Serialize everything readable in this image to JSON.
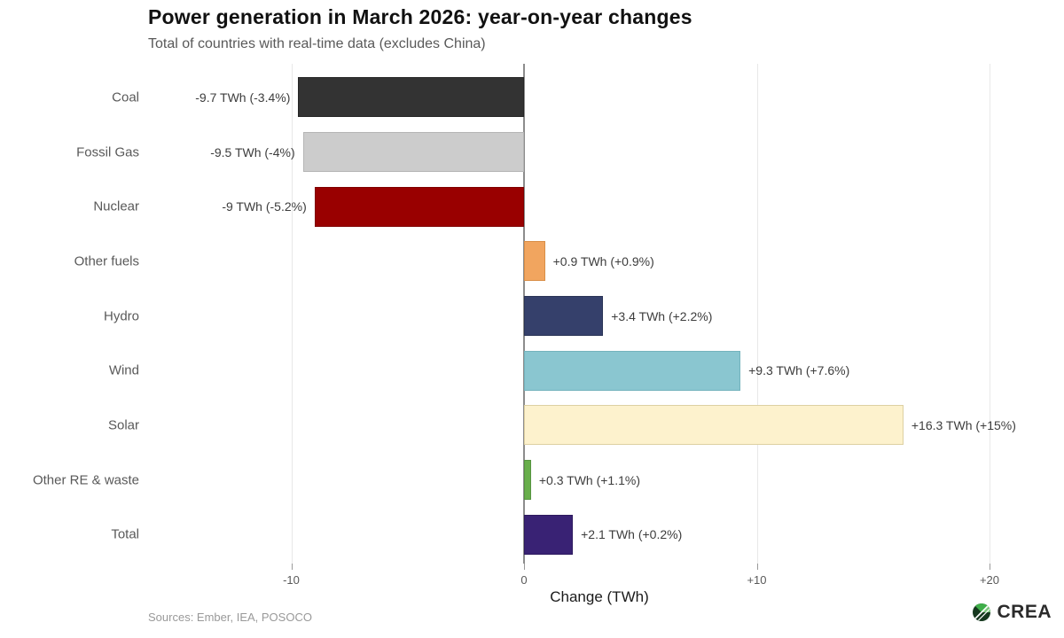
{
  "header": {
    "title": "Power generation in March 2026: year-on-year changes",
    "subtitle": "Total of countries with real-time data (excludes China)"
  },
  "chart_data": {
    "type": "bar",
    "orientation": "horizontal",
    "title": "Power generation in March 2026: year-on-year changes",
    "subtitle": "Total of countries with real-time data (excludes China)",
    "xlabel": "Change (TWh)",
    "xlim": [
      -16.2,
      22.7
    ],
    "grid": "vertical-only",
    "legend": "none",
    "x_ticks": [
      {
        "value": -10,
        "label": "-10"
      },
      {
        "value": 0,
        "label": "0"
      },
      {
        "value": 10,
        "label": "+10"
      },
      {
        "value": 20,
        "label": "+20"
      }
    ],
    "bars": [
      {
        "category": "Coal",
        "value_twh": -9.7,
        "label": "-9.7 TWh (-3.4%)",
        "color": "#333333",
        "border": "#262626"
      },
      {
        "category": "Fossil Gas",
        "value_twh": -9.5,
        "label": "-9.5 TWh (-4%)",
        "color": "#cccccc",
        "border": "#b5b5b5"
      },
      {
        "category": "Nuclear",
        "value_twh": -9.0,
        "label": "-9 TWh (-5.2%)",
        "color": "#990000",
        "border": "#7f0000"
      },
      {
        "category": "Other fuels",
        "value_twh": 0.9,
        "label": "+0.9 TWh (+0.9%)",
        "color": "#f1a55f",
        "border": "#d98f48"
      },
      {
        "category": "Hydro",
        "value_twh": 3.4,
        "label": "+3.4 TWh (+2.2%)",
        "color": "#35406b",
        "border": "#2a3456"
      },
      {
        "category": "Wind",
        "value_twh": 9.3,
        "label": "+9.3 TWh (+7.6%)",
        "color": "#8ac6d0",
        "border": "#74b3bd"
      },
      {
        "category": "Solar",
        "value_twh": 16.3,
        "label": "+16.3 TWh (+15%)",
        "color": "#fdf2cd",
        "border": "#ddd0a2"
      },
      {
        "category": "Other RE & waste",
        "value_twh": 0.3,
        "label": "+0.3 TWh (+1.1%)",
        "color": "#68ae4b",
        "border": "#569440"
      },
      {
        "category": "Total",
        "value_twh": 2.1,
        "label": "+2.1 TWh (+0.2%)",
        "color": "#392274",
        "border": "#2d1a5e"
      }
    ]
  },
  "footer": {
    "sources": "Sources: Ember, IEA, POSOCO",
    "logo_text": "CREA"
  },
  "colors": {
    "zero_line": "#8c8c8c",
    "gridline": "#e8e8e8",
    "axis_text": "#595959",
    "value_label": "#3d3d3d",
    "logo_green": "#3fae49",
    "logo_dark": "#16381f"
  }
}
